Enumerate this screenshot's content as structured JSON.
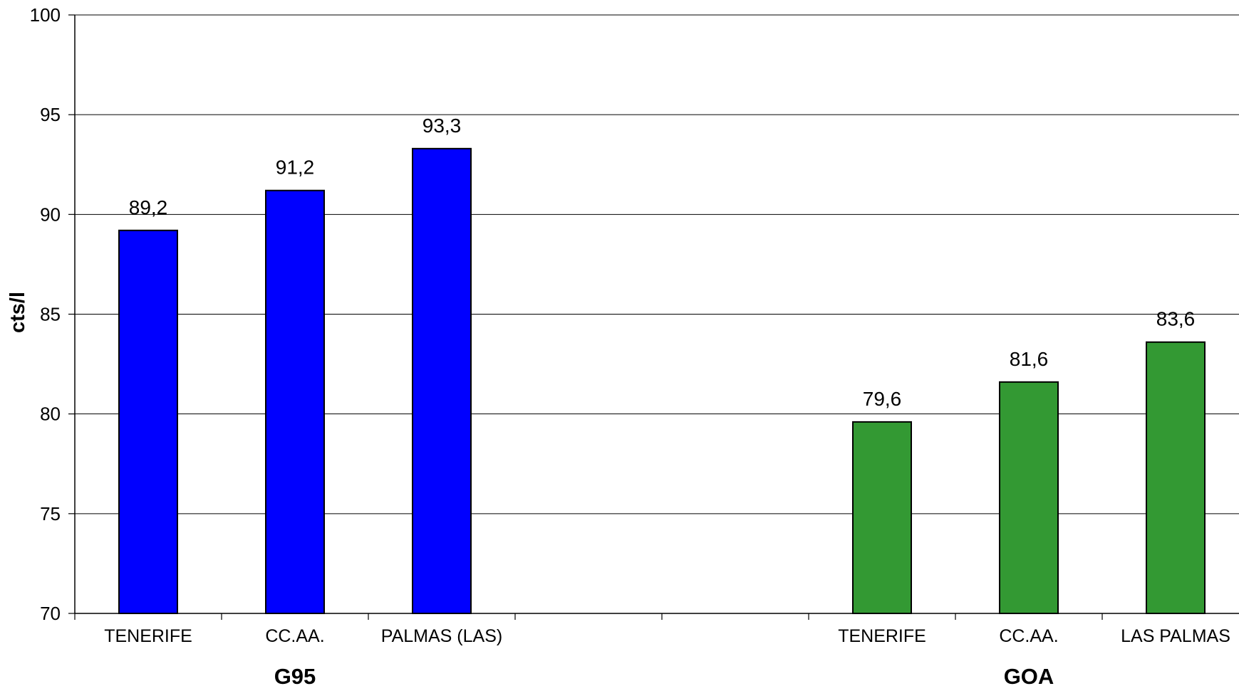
{
  "chart_data": {
    "type": "bar",
    "ylabel": "cts/l",
    "ylim": [
      70,
      100
    ],
    "yticks": [
      70,
      75,
      80,
      85,
      90,
      95,
      100
    ],
    "grid": true,
    "legend": "none",
    "groups": [
      {
        "name": "G95",
        "color": "#0000FF",
        "categories": [
          "TENERIFE",
          "CC.AA.",
          "PALMAS (LAS)"
        ],
        "values": [
          89.2,
          91.2,
          93.3
        ],
        "labels": [
          "89,2",
          "91,2",
          "93,3"
        ]
      },
      {
        "name": "GOA",
        "color": "#339933",
        "categories": [
          "TENERIFE",
          "CC.AA.",
          "LAS PALMAS"
        ],
        "values": [
          79.6,
          81.6,
          83.6
        ],
        "labels": [
          "79,6",
          "81,6",
          "83,6"
        ]
      }
    ]
  }
}
